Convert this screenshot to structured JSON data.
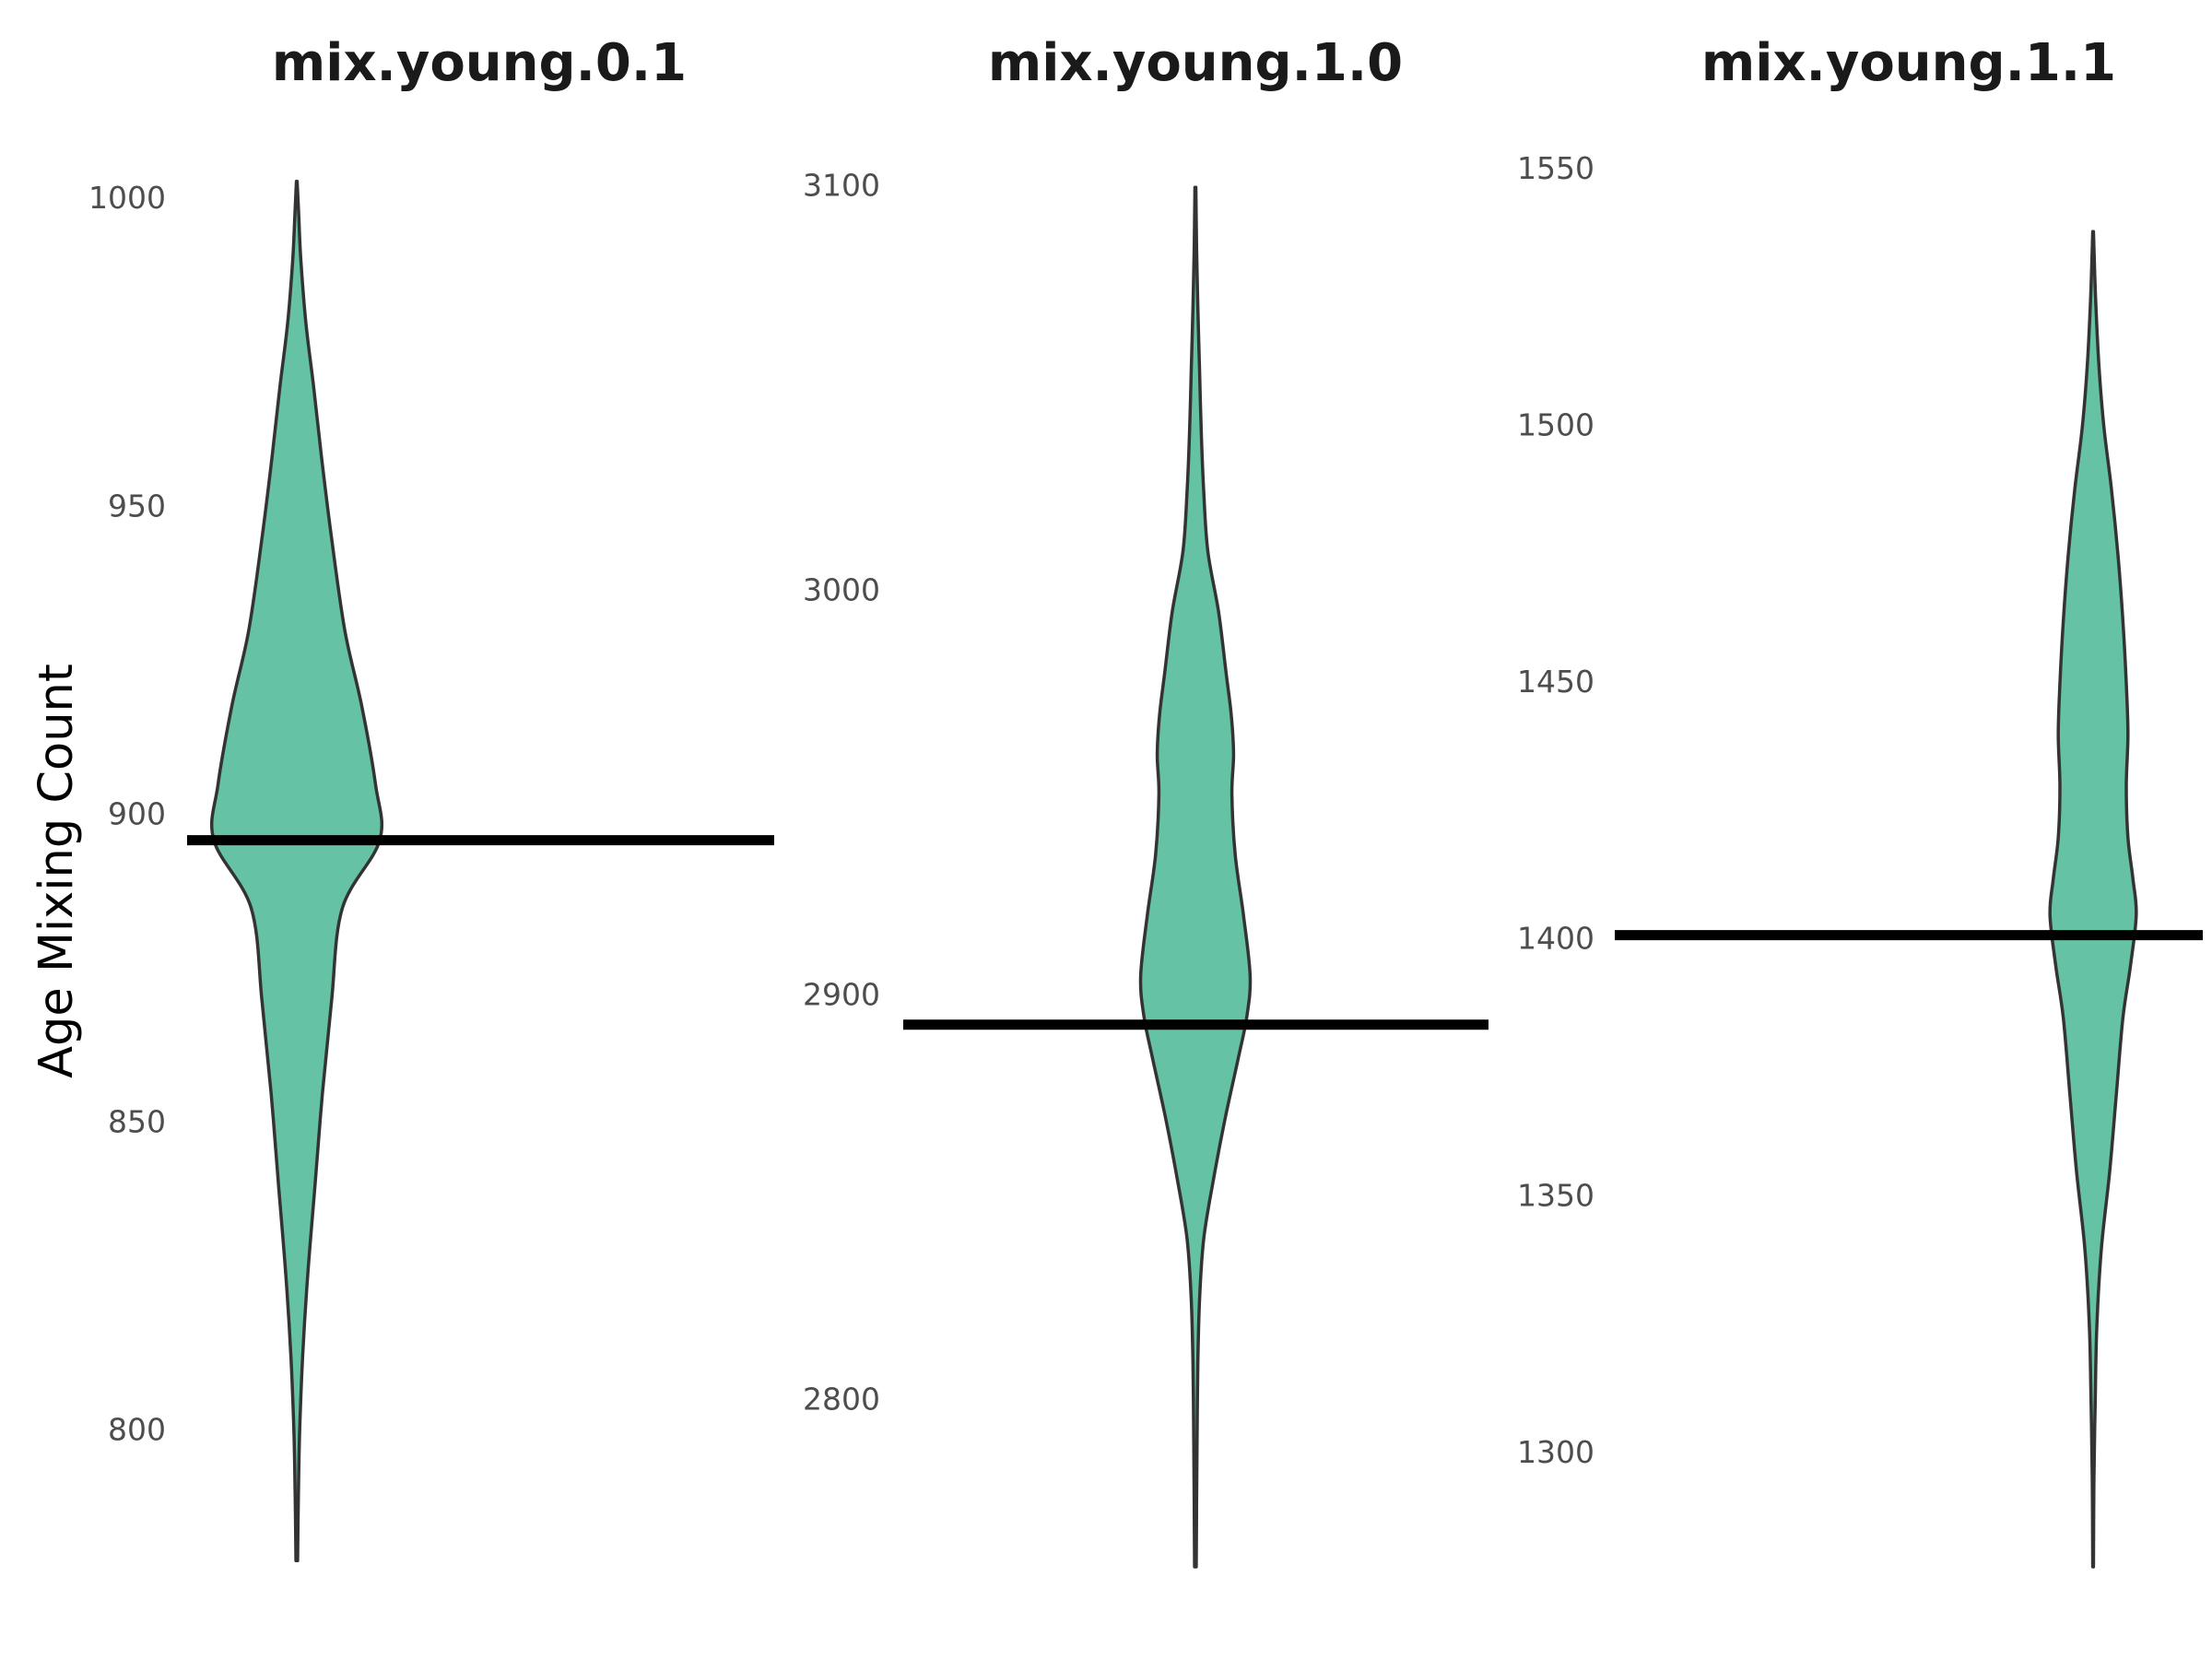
{
  "chart_data": {
    "type": "violin",
    "ylabel": "Age Mixing Count",
    "colors": {
      "fill": "#66c2a5",
      "outline": "#333333",
      "reference_line": "#000000"
    },
    "grid": false,
    "legend": "none",
    "panels": [
      {
        "title": "mix.young.0.1",
        "ylim": [
          778,
          1004
        ],
        "yticks": [
          "800",
          "850",
          "900",
          "950",
          "1000"
        ],
        "reference_line": 896,
        "min": 779,
        "max": 1003,
        "density_profile": [
          [
            779,
            0.01
          ],
          [
            790,
            0.02
          ],
          [
            800,
            0.035
          ],
          [
            812,
            0.07
          ],
          [
            825,
            0.13
          ],
          [
            840,
            0.22
          ],
          [
            855,
            0.31
          ],
          [
            870,
            0.42
          ],
          [
            885,
            0.55
          ],
          [
            896,
            1.0
          ],
          [
            905,
            0.95
          ],
          [
            918,
            0.78
          ],
          [
            930,
            0.58
          ],
          [
            945,
            0.42
          ],
          [
            958,
            0.3
          ],
          [
            970,
            0.2
          ],
          [
            980,
            0.11
          ],
          [
            990,
            0.05
          ],
          [
            997,
            0.025
          ],
          [
            1003,
            0.005
          ]
        ]
      },
      {
        "title": "mix.young.1.0",
        "ylim": [
          2759,
          3103
        ],
        "yticks": [
          "2800",
          "2900",
          "3000",
          "3100"
        ],
        "reference_line": 2893,
        "min": 2759,
        "max": 3100,
        "density_profile": [
          [
            2759,
            0.01
          ],
          [
            2775,
            0.015
          ],
          [
            2790,
            0.02
          ],
          [
            2810,
            0.03
          ],
          [
            2825,
            0.05
          ],
          [
            2840,
            0.1
          ],
          [
            2855,
            0.22
          ],
          [
            2870,
            0.36
          ],
          [
            2885,
            0.52
          ],
          [
            2895,
            0.62
          ],
          [
            2905,
            0.66
          ],
          [
            2920,
            0.58
          ],
          [
            2935,
            0.48
          ],
          [
            2950,
            0.44
          ],
          [
            2960,
            0.46
          ],
          [
            2970,
            0.43
          ],
          [
            2980,
            0.37
          ],
          [
            2995,
            0.28
          ],
          [
            3010,
            0.15
          ],
          [
            3025,
            0.1
          ],
          [
            3040,
            0.07
          ],
          [
            3055,
            0.05
          ],
          [
            3070,
            0.03
          ],
          [
            3085,
            0.015
          ],
          [
            3100,
            0.005
          ]
        ]
      },
      {
        "title": "mix.young.1.1",
        "ylim": [
          1278,
          1549
        ],
        "yticks": [
          "1300",
          "1350",
          "1400",
          "1450",
          "1500",
          "1550"
        ],
        "reference_line": 1401,
        "min": 1278,
        "max": 1538,
        "density_profile": [
          [
            1278,
            0.005
          ],
          [
            1295,
            0.01
          ],
          [
            1310,
            0.025
          ],
          [
            1325,
            0.045
          ],
          [
            1340,
            0.1
          ],
          [
            1355,
            0.2
          ],
          [
            1370,
            0.28
          ],
          [
            1385,
            0.36
          ],
          [
            1395,
            0.45
          ],
          [
            1405,
            0.52
          ],
          [
            1412,
            0.48
          ],
          [
            1420,
            0.42
          ],
          [
            1430,
            0.4
          ],
          [
            1440,
            0.42
          ],
          [
            1450,
            0.4
          ],
          [
            1462,
            0.36
          ],
          [
            1475,
            0.3
          ],
          [
            1488,
            0.22
          ],
          [
            1500,
            0.13
          ],
          [
            1512,
            0.07
          ],
          [
            1525,
            0.03
          ],
          [
            1538,
            0.005
          ]
        ]
      }
    ]
  }
}
